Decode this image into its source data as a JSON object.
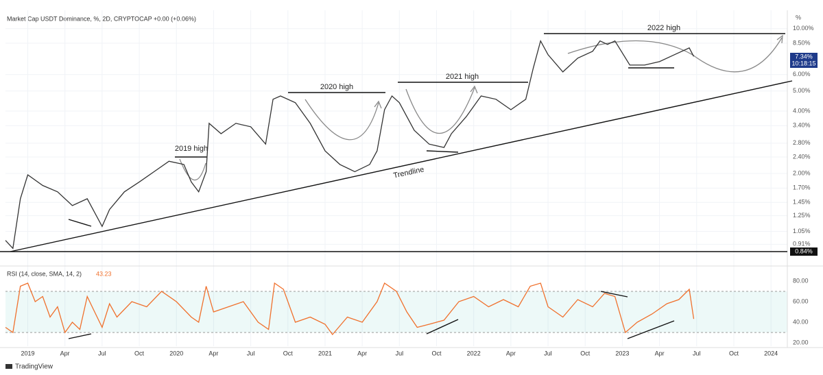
{
  "header": "Market Cap USDT Dominance, %, 2D, CRYPTOCAP +0.00 (+0.06%)",
  "y_unit": "%",
  "last_price_label": "7.34%",
  "countdown": "10:18:15",
  "baseline_label": "0.84%",
  "annotations": [
    "2019 high",
    "2020 high",
    "2021 high",
    "2022 high",
    "Trendline"
  ],
  "rsi_header": "RSI (14, close, SMA, 14, 2)",
  "rsi_last": "43.23",
  "footer": "TradingView",
  "chart_data": [
    {
      "type": "line",
      "log_scale": true,
      "color": "#333333",
      "xlim": [
        2018.85,
        2024.11
      ],
      "xticks": [
        {
          "value": 2019,
          "label": "2019"
        },
        {
          "value": 2019.25,
          "label": "Apr"
        },
        {
          "value": 2019.5,
          "label": "Jul"
        },
        {
          "value": 2019.75,
          "label": "Oct"
        },
        {
          "value": 2020,
          "label": "2020"
        },
        {
          "value": 2020.25,
          "label": "Apr"
        },
        {
          "value": 2020.5,
          "label": "Jul"
        },
        {
          "value": 2020.75,
          "label": "Oct"
        },
        {
          "value": 2021,
          "label": "2021"
        },
        {
          "value": 2021.25,
          "label": "Apr"
        },
        {
          "value": 2021.5,
          "label": "Jul"
        },
        {
          "value": 2021.75,
          "label": "Oct"
        },
        {
          "value": 2022,
          "label": "2022"
        },
        {
          "value": 2022.25,
          "label": "Apr"
        },
        {
          "value": 2022.5,
          "label": "Jul"
        },
        {
          "value": 2022.75,
          "label": "Oct"
        },
        {
          "value": 2023,
          "label": "2023"
        },
        {
          "value": 2023.25,
          "label": "Apr"
        },
        {
          "value": 2023.5,
          "label": "Jul"
        },
        {
          "value": 2023.75,
          "label": "Oct"
        },
        {
          "value": 2024,
          "label": "2024"
        }
      ],
      "ylim": [
        0.76,
        11.8
      ],
      "yticks": [
        {
          "value": 10,
          "label": "10.00%"
        },
        {
          "value": 8.5,
          "label": "8.50%"
        },
        {
          "value": 6,
          "label": "6.00%"
        },
        {
          "value": 5,
          "label": "5.00%"
        },
        {
          "value": 4,
          "label": "4.00%"
        },
        {
          "value": 3.4,
          "label": "3.40%"
        },
        {
          "value": 2.8,
          "label": "2.80%"
        },
        {
          "value": 2.4,
          "label": "2.40%"
        },
        {
          "value": 2,
          "label": "2.00%"
        },
        {
          "value": 1.7,
          "label": "1.70%"
        },
        {
          "value": 1.45,
          "label": "1.45%"
        },
        {
          "value": 1.25,
          "label": "1.25%"
        },
        {
          "value": 1.05,
          "label": "1.05%"
        },
        {
          "value": 0.91,
          "label": "0.91%"
        }
      ],
      "grid": true,
      "x": [
        2018.85,
        2018.9,
        2018.95,
        2019.0,
        2019.1,
        2019.2,
        2019.3,
        2019.4,
        2019.5,
        2019.55,
        2019.65,
        2019.75,
        2019.85,
        2019.95,
        2020.05,
        2020.1,
        2020.15,
        2020.2,
        2020.22,
        2020.3,
        2020.4,
        2020.5,
        2020.6,
        2020.65,
        2020.7,
        2020.8,
        2020.9,
        2021.0,
        2021.1,
        2021.2,
        2021.3,
        2021.35,
        2021.4,
        2021.45,
        2021.5,
        2021.6,
        2021.7,
        2021.8,
        2021.85,
        2021.95,
        2022.05,
        2022.15,
        2022.25,
        2022.35,
        2022.4,
        2022.45,
        2022.5,
        2022.6,
        2022.7,
        2022.8,
        2022.85,
        2022.9,
        2022.95,
        2023.05,
        2023.15,
        2023.25,
        2023.35,
        2023.45,
        2023.48
      ],
      "values": [
        0.95,
        0.87,
        1.51,
        1.97,
        1.75,
        1.63,
        1.4,
        1.51,
        1.11,
        1.34,
        1.63,
        1.82,
        2.04,
        2.29,
        2.21,
        1.82,
        1.63,
        2.04,
        3.49,
        3.11,
        3.49,
        3.36,
        2.77,
        4.56,
        4.73,
        4.39,
        3.49,
        2.57,
        2.21,
        2.04,
        2.21,
        2.57,
        4.06,
        4.73,
        4.39,
        3.23,
        2.77,
        2.67,
        3.11,
        3.76,
        4.73,
        4.56,
        4.06,
        4.56,
        6.42,
        8.72,
        7.48,
        6.18,
        7.2,
        7.77,
        8.72,
        8.39,
        8.72,
        6.67,
        6.67,
        6.93,
        7.48,
        8.07,
        7.34
      ]
    },
    {
      "type": "line",
      "color": "#f0702c",
      "xlim": [
        2018.85,
        2024.11
      ],
      "ylim": [
        16.7,
        90
      ],
      "yticks": [
        {
          "value": 20,
          "label": "20.00"
        },
        {
          "value": 40,
          "label": "40.00"
        },
        {
          "value": 60,
          "label": "60.00"
        },
        {
          "value": 80,
          "label": "80.00"
        }
      ],
      "bands": [
        30,
        70
      ],
      "x": [
        2018.85,
        2018.9,
        2018.95,
        2019.0,
        2019.05,
        2019.1,
        2019.15,
        2019.2,
        2019.25,
        2019.3,
        2019.35,
        2019.4,
        2019.45,
        2019.5,
        2019.55,
        2019.6,
        2019.7,
        2019.8,
        2019.9,
        2020.0,
        2020.1,
        2020.15,
        2020.2,
        2020.25,
        2020.35,
        2020.45,
        2020.55,
        2020.62,
        2020.66,
        2020.72,
        2020.8,
        2020.9,
        2021.0,
        2021.05,
        2021.15,
        2021.25,
        2021.35,
        2021.4,
        2021.48,
        2021.55,
        2021.62,
        2021.7,
        2021.8,
        2021.9,
        2022.0,
        2022.1,
        2022.2,
        2022.3,
        2022.38,
        2022.45,
        2022.5,
        2022.6,
        2022.7,
        2022.8,
        2022.88,
        2022.95,
        2023.02,
        2023.1,
        2023.2,
        2023.3,
        2023.38,
        2023.45,
        2023.48
      ],
      "values": [
        35,
        30,
        75,
        78,
        60,
        65,
        45,
        55,
        30,
        40,
        33,
        65,
        50,
        35,
        58,
        45,
        60,
        55,
        70,
        60,
        45,
        40,
        75,
        50,
        55,
        60,
        40,
        33,
        78,
        72,
        40,
        45,
        38,
        28,
        45,
        40,
        60,
        78,
        70,
        50,
        35,
        38,
        42,
        60,
        65,
        55,
        62,
        55,
        75,
        78,
        55,
        45,
        62,
        55,
        68,
        65,
        30,
        40,
        48,
        58,
        62,
        72,
        43.23
      ]
    }
  ]
}
